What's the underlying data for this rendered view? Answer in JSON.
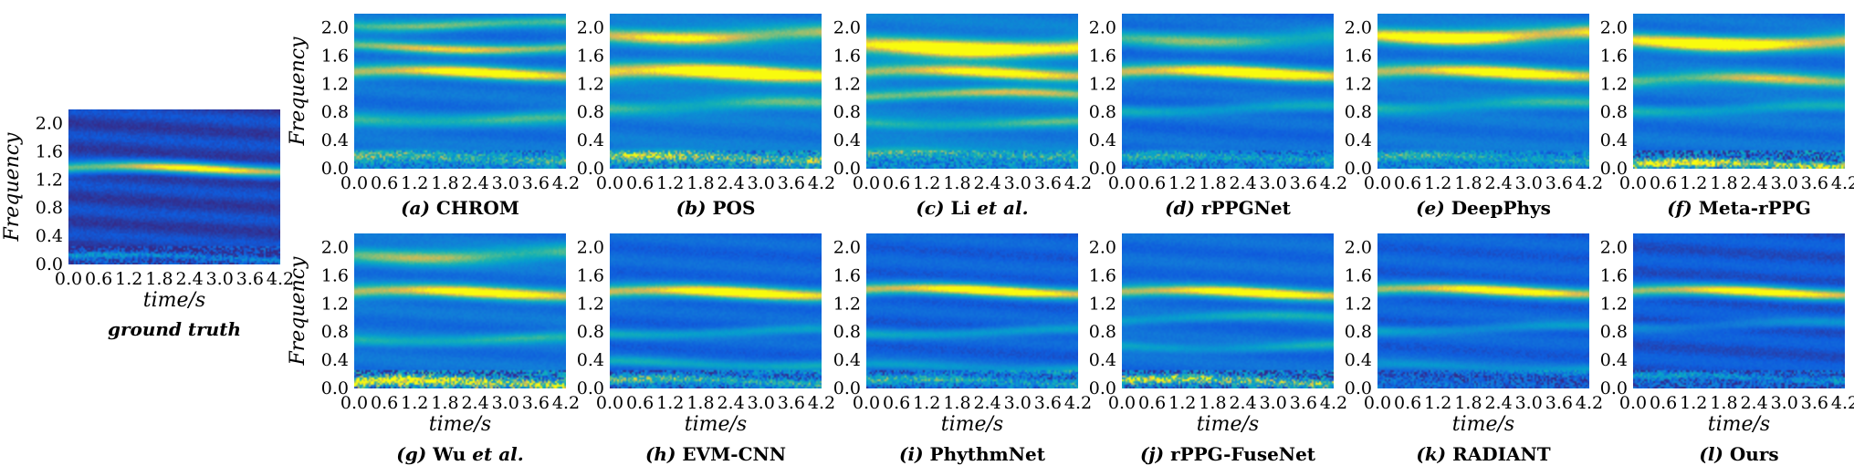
{
  "chart_data": [
    {
      "id": "gt",
      "type": "heatmap",
      "caption_letter": "",
      "caption_name": "ground truth",
      "caption_style": "bold-italic",
      "xlabel": "time/s",
      "ylabel": "Frequency",
      "xticks": [
        "0.0",
        "0.6",
        "1.2",
        "1.8",
        "2.4",
        "3.0",
        "3.6",
        "4.2"
      ],
      "yticks": [
        "0.0",
        "0.4",
        "0.8",
        "1.2",
        "1.6",
        "2.0"
      ],
      "xlim": [
        0,
        4.2
      ],
      "ylim": [
        0,
        2.2
      ],
      "colormap": "parula",
      "bands": [
        {
          "f": 1.35,
          "w": 0.08,
          "a": 0.95
        },
        {
          "f": 0.1,
          "w": 0.04,
          "a": 0.35
        }
      ],
      "background": 0.08,
      "low_noise": 0.3
    },
    {
      "id": "a",
      "type": "heatmap",
      "caption_letter": "(a)",
      "caption_name": "CHROM",
      "caption_style": "bold",
      "xlabel": "",
      "ylabel": "Frequency",
      "xticks": [
        "0.0",
        "0.6",
        "1.2",
        "1.8",
        "2.4",
        "3.0",
        "3.6",
        "4.2"
      ],
      "yticks": [
        "0.0",
        "0.4",
        "0.8",
        "1.2",
        "1.6",
        "2.0"
      ],
      "xlim": [
        0,
        4.2
      ],
      "ylim": [
        0,
        2.2
      ],
      "colormap": "parula",
      "bands": [
        {
          "f": 1.35,
          "w": 0.1,
          "a": 0.85
        },
        {
          "f": 1.72,
          "w": 0.08,
          "a": 0.7
        },
        {
          "f": 2.05,
          "w": 0.08,
          "a": 0.55
        },
        {
          "f": 0.7,
          "w": 0.1,
          "a": 0.45
        },
        {
          "f": 0.15,
          "w": 0.08,
          "a": 0.5
        }
      ],
      "background": 0.25,
      "low_noise": 0.4
    },
    {
      "id": "b",
      "type": "heatmap",
      "caption_letter": "(b)",
      "caption_name": "POS",
      "caption_style": "bold",
      "xlabel": "",
      "ylabel": "",
      "xticks": [
        "0.0",
        "0.6",
        "1.2",
        "1.8",
        "2.4",
        "3.0",
        "3.6",
        "4.2"
      ],
      "yticks": [
        "0.0",
        "0.4",
        "0.8",
        "1.2",
        "1.6",
        "2.0"
      ],
      "xlim": [
        0,
        4.2
      ],
      "ylim": [
        0,
        2.2
      ],
      "colormap": "parula",
      "bands": [
        {
          "f": 1.35,
          "w": 0.13,
          "a": 0.95
        },
        {
          "f": 1.9,
          "w": 0.12,
          "a": 0.75
        },
        {
          "f": 0.9,
          "w": 0.1,
          "a": 0.45
        },
        {
          "f": 0.15,
          "w": 0.08,
          "a": 0.6
        }
      ],
      "background": 0.28,
      "low_noise": 0.5
    },
    {
      "id": "c",
      "type": "heatmap",
      "caption_letter": "(c)",
      "caption_name": "Li",
      "caption_suffix": "et al.",
      "caption_style": "bold",
      "xlabel": "",
      "ylabel": "",
      "xticks": [
        "0.0",
        "0.6",
        "1.2",
        "1.8",
        "2.4",
        "3.0",
        "3.6",
        "4.2"
      ],
      "yticks": [
        "0.0",
        "0.4",
        "0.8",
        "1.2",
        "1.6",
        "2.0"
      ],
      "xlim": [
        0,
        4.2
      ],
      "ylim": [
        0,
        2.2
      ],
      "colormap": "parula",
      "bands": [
        {
          "f": 1.72,
          "w": 0.14,
          "a": 0.95
        },
        {
          "f": 1.35,
          "w": 0.1,
          "a": 0.75
        },
        {
          "f": 1.05,
          "w": 0.08,
          "a": 0.6
        },
        {
          "f": 0.65,
          "w": 0.08,
          "a": 0.4
        },
        {
          "f": 0.2,
          "w": 0.08,
          "a": 0.4
        }
      ],
      "background": 0.3,
      "low_noise": 0.4
    },
    {
      "id": "d",
      "type": "heatmap",
      "caption_letter": "(d)",
      "caption_name": "rPPGNet",
      "caption_style": "bold",
      "xlabel": "",
      "ylabel": "",
      "xticks": [
        "0.0",
        "0.6",
        "1.2",
        "1.8",
        "2.4",
        "3.0",
        "3.6",
        "4.2"
      ],
      "yticks": [
        "0.0",
        "0.4",
        "0.8",
        "1.2",
        "1.6",
        "2.0"
      ],
      "xlim": [
        0,
        4.2
      ],
      "ylim": [
        0,
        2.2
      ],
      "colormap": "parula",
      "bands": [
        {
          "f": 1.35,
          "w": 0.11,
          "a": 0.95
        },
        {
          "f": 1.85,
          "w": 0.12,
          "a": 0.55
        },
        {
          "f": 0.85,
          "w": 0.08,
          "a": 0.35
        },
        {
          "f": 0.15,
          "w": 0.07,
          "a": 0.4
        }
      ],
      "background": 0.22,
      "low_noise": 0.35
    },
    {
      "id": "e",
      "type": "heatmap",
      "caption_letter": "(e)",
      "caption_name": "DeepPhys",
      "caption_style": "bold",
      "xlabel": "",
      "ylabel": "",
      "xticks": [
        "0.0",
        "0.6",
        "1.2",
        "1.8",
        "2.4",
        "3.0",
        "3.6",
        "4.2"
      ],
      "yticks": [
        "0.0",
        "0.4",
        "0.8",
        "1.2",
        "1.6",
        "2.0"
      ],
      "xlim": [
        0,
        4.2
      ],
      "ylim": [
        0,
        2.2
      ],
      "colormap": "parula",
      "bands": [
        {
          "f": 1.9,
          "w": 0.12,
          "a": 0.95
        },
        {
          "f": 1.35,
          "w": 0.11,
          "a": 0.85
        },
        {
          "f": 0.9,
          "w": 0.09,
          "a": 0.4
        },
        {
          "f": 0.15,
          "w": 0.07,
          "a": 0.4
        }
      ],
      "background": 0.26,
      "low_noise": 0.35
    },
    {
      "id": "f",
      "type": "heatmap",
      "caption_letter": "(f)",
      "caption_name": "Meta-rPPG",
      "caption_style": "bold",
      "xlabel": "",
      "ylabel": "",
      "xticks": [
        "0.0",
        "0.6",
        "1.2",
        "1.8",
        "2.4",
        "3.0",
        "3.6",
        "4.2"
      ],
      "yticks": [
        "0.0",
        "0.4",
        "0.8",
        "1.2",
        "1.6",
        "2.0"
      ],
      "xlim": [
        0,
        4.2
      ],
      "ylim": [
        0,
        2.2
      ],
      "colormap": "parula",
      "bands": [
        {
          "f": 1.8,
          "w": 0.12,
          "a": 0.95
        },
        {
          "f": 1.25,
          "w": 0.1,
          "a": 0.7
        },
        {
          "f": 0.85,
          "w": 0.08,
          "a": 0.35
        },
        {
          "f": 0.05,
          "w": 0.06,
          "a": 0.8
        }
      ],
      "background": 0.25,
      "low_noise": 0.6
    },
    {
      "id": "g",
      "type": "heatmap",
      "caption_letter": "(g)",
      "caption_name": "Wu",
      "caption_suffix": "et al.",
      "caption_style": "bold",
      "xlabel": "time/s",
      "ylabel": "Frequency",
      "xticks": [
        "0.0",
        "0.6",
        "1.2",
        "1.8",
        "2.4",
        "3.0",
        "3.6",
        "4.2"
      ],
      "yticks": [
        "0.0",
        "0.4",
        "0.8",
        "1.2",
        "1.6",
        "2.0"
      ],
      "xlim": [
        0,
        4.2
      ],
      "ylim": [
        0,
        2.2
      ],
      "colormap": "parula",
      "bands": [
        {
          "f": 1.35,
          "w": 0.1,
          "a": 0.85
        },
        {
          "f": 1.9,
          "w": 0.12,
          "a": 0.6
        },
        {
          "f": 0.7,
          "w": 0.08,
          "a": 0.4
        },
        {
          "f": 0.08,
          "w": 0.07,
          "a": 0.85
        }
      ],
      "background": 0.25,
      "low_noise": 0.7
    },
    {
      "id": "h",
      "type": "heatmap",
      "caption_letter": "(h)",
      "caption_name": "EVM-CNN",
      "caption_style": "bold",
      "xlabel": "time/s",
      "ylabel": "",
      "xticks": [
        "0.0",
        "0.6",
        "1.2",
        "1.8",
        "2.4",
        "3.0",
        "3.6",
        "4.2"
      ],
      "yticks": [
        "0.0",
        "0.4",
        "0.8",
        "1.2",
        "1.6",
        "2.0"
      ],
      "xlim": [
        0,
        4.2
      ],
      "ylim": [
        0,
        2.2
      ],
      "colormap": "parula",
      "bands": [
        {
          "f": 1.35,
          "w": 0.1,
          "a": 0.95
        },
        {
          "f": 0.8,
          "w": 0.07,
          "a": 0.35
        },
        {
          "f": 0.35,
          "w": 0.07,
          "a": 0.35
        },
        {
          "f": 0.1,
          "w": 0.06,
          "a": 0.5
        }
      ],
      "background": 0.2,
      "low_noise": 0.45
    },
    {
      "id": "i",
      "type": "heatmap",
      "caption_letter": "(i)",
      "caption_name": "PhythmNet",
      "caption_style": "bold",
      "xlabel": "time/s",
      "ylabel": "",
      "xticks": [
        "0.0",
        "0.6",
        "1.2",
        "1.8",
        "2.4",
        "3.0",
        "3.6",
        "4.2"
      ],
      "yticks": [
        "0.0",
        "0.4",
        "0.8",
        "1.2",
        "1.6",
        "2.0"
      ],
      "xlim": [
        0,
        4.2
      ],
      "ylim": [
        0,
        2.2
      ],
      "colormap": "parula",
      "bands": [
        {
          "f": 1.38,
          "w": 0.09,
          "a": 0.95
        },
        {
          "f": 0.8,
          "w": 0.07,
          "a": 0.35
        },
        {
          "f": 0.3,
          "w": 0.07,
          "a": 0.3
        },
        {
          "f": 0.1,
          "w": 0.06,
          "a": 0.45
        }
      ],
      "background": 0.18,
      "low_noise": 0.4
    },
    {
      "id": "j",
      "type": "heatmap",
      "caption_letter": "(j)",
      "caption_name": "rPPG-FuseNet",
      "caption_style": "bold",
      "xlabel": "time/s",
      "ylabel": "",
      "xticks": [
        "0.0",
        "0.6",
        "1.2",
        "1.8",
        "2.4",
        "3.0",
        "3.6",
        "4.2"
      ],
      "yticks": [
        "0.0",
        "0.4",
        "0.8",
        "1.2",
        "1.6",
        "2.0"
      ],
      "xlim": [
        0,
        4.2
      ],
      "ylim": [
        0,
        2.2
      ],
      "colormap": "parula",
      "bands": [
        {
          "f": 1.35,
          "w": 0.09,
          "a": 0.9
        },
        {
          "f": 1.0,
          "w": 0.07,
          "a": 0.35
        },
        {
          "f": 0.6,
          "w": 0.07,
          "a": 0.35
        },
        {
          "f": 0.1,
          "w": 0.06,
          "a": 0.7
        }
      ],
      "background": 0.22,
      "low_noise": 0.6
    },
    {
      "id": "k",
      "type": "heatmap",
      "caption_letter": "(k)",
      "caption_name": "RADIANT",
      "caption_style": "bold",
      "xlabel": "time/s",
      "ylabel": "",
      "xticks": [
        "0.0",
        "0.6",
        "1.2",
        "1.8",
        "2.4",
        "3.0",
        "3.6",
        "4.2"
      ],
      "yticks": [
        "0.0",
        "0.4",
        "0.8",
        "1.2",
        "1.6",
        "2.0"
      ],
      "xlim": [
        0,
        4.2
      ],
      "ylim": [
        0,
        2.2
      ],
      "colormap": "parula",
      "bands": [
        {
          "f": 1.38,
          "w": 0.09,
          "a": 0.9
        },
        {
          "f": 0.85,
          "w": 0.07,
          "a": 0.3
        },
        {
          "f": 0.3,
          "w": 0.07,
          "a": 0.25
        }
      ],
      "background": 0.18,
      "low_noise": 0.3
    },
    {
      "id": "l",
      "type": "heatmap",
      "caption_letter": "(l)",
      "caption_name": "Ours",
      "caption_style": "bold",
      "xlabel": "time/s",
      "ylabel": "",
      "xticks": [
        "0.0",
        "0.6",
        "1.2",
        "1.8",
        "2.4",
        "3.0",
        "3.6",
        "4.2"
      ],
      "yticks": [
        "0.0",
        "0.4",
        "0.8",
        "1.2",
        "1.6",
        "2.0"
      ],
      "xlim": [
        0,
        4.2
      ],
      "ylim": [
        0,
        2.2
      ],
      "colormap": "parula",
      "bands": [
        {
          "f": 1.36,
          "w": 0.09,
          "a": 0.95
        },
        {
          "f": 0.9,
          "w": 0.07,
          "a": 0.25
        },
        {
          "f": 0.15,
          "w": 0.05,
          "a": 0.35
        }
      ],
      "background": 0.14,
      "low_noise": 0.35
    }
  ]
}
